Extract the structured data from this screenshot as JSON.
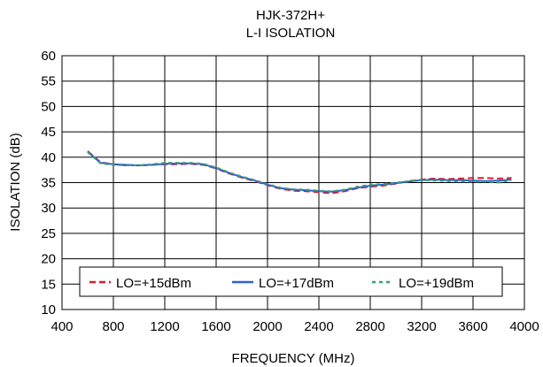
{
  "chart_data": {
    "type": "line",
    "title": "HJK-372H+",
    "subtitle": "L-I ISOLATION",
    "xlabel": "FREQUENCY (MHz)",
    "ylabel": "ISOLATION (dB)",
    "xlim": [
      400,
      4000
    ],
    "ylim": [
      10,
      60
    ],
    "xticks": [
      400,
      800,
      1200,
      1600,
      2000,
      2400,
      2800,
      3200,
      3600,
      4000
    ],
    "yticks": [
      10,
      15,
      20,
      25,
      30,
      35,
      40,
      45,
      50,
      55,
      60
    ],
    "grid": true,
    "legend_position": "bottom",
    "series": [
      {
        "name": "LO=+15dBm",
        "color": "#d81e2c",
        "style": "dashed",
        "x": [
          600,
          700,
          800,
          900,
          1000,
          1100,
          1200,
          1300,
          1400,
          1500,
          1600,
          1700,
          1800,
          1900,
          2000,
          2100,
          2200,
          2300,
          2400,
          2500,
          2600,
          2700,
          2800,
          2900,
          3000,
          3100,
          3200,
          3300,
          3400,
          3500,
          3600,
          3700,
          3800,
          3900
        ],
        "values": [
          41.2,
          39.0,
          38.6,
          38.4,
          38.4,
          38.5,
          38.6,
          38.6,
          38.7,
          38.5,
          37.8,
          36.8,
          36.0,
          35.3,
          34.5,
          33.8,
          33.4,
          33.3,
          33.1,
          32.9,
          33.3,
          33.9,
          34.2,
          34.4,
          34.8,
          35.3,
          35.6,
          35.8,
          35.7,
          35.8,
          35.9,
          35.9,
          35.8,
          35.9
        ]
      },
      {
        "name": "LO=+17dBm",
        "color": "#2d5fd6",
        "style": "solid",
        "x": [
          600,
          700,
          800,
          900,
          1000,
          1100,
          1200,
          1300,
          1400,
          1500,
          1600,
          1700,
          1800,
          1900,
          2000,
          2100,
          2200,
          2300,
          2400,
          2500,
          2600,
          2700,
          2800,
          2900,
          3000,
          3100,
          3200,
          3300,
          3400,
          3500,
          3600,
          3700,
          3800,
          3900
        ],
        "values": [
          41.1,
          38.9,
          38.6,
          38.5,
          38.4,
          38.5,
          38.7,
          38.8,
          38.8,
          38.6,
          37.9,
          36.9,
          36.1,
          35.4,
          34.6,
          33.9,
          33.6,
          33.5,
          33.3,
          33.2,
          33.5,
          34.0,
          34.4,
          34.6,
          34.9,
          35.2,
          35.5,
          35.6,
          35.5,
          35.5,
          35.4,
          35.3,
          35.4,
          35.6
        ]
      },
      {
        "name": "LO=+19dBm",
        "color": "#3aa06a",
        "style": "dotted",
        "x": [
          600,
          700,
          800,
          900,
          1000,
          1100,
          1200,
          1300,
          1400,
          1500,
          1600,
          1700,
          1800,
          1900,
          2000,
          2100,
          2200,
          2300,
          2400,
          2500,
          2600,
          2700,
          2800,
          2900,
          3000,
          3100,
          3200,
          3300,
          3400,
          3500,
          3600,
          3700,
          3800,
          3900
        ],
        "values": [
          41.0,
          38.8,
          38.5,
          38.4,
          38.4,
          38.6,
          38.9,
          38.9,
          38.9,
          38.7,
          38.0,
          37.0,
          36.2,
          35.5,
          34.7,
          34.0,
          33.7,
          33.6,
          33.4,
          33.3,
          33.6,
          34.2,
          34.6,
          34.7,
          35.0,
          35.3,
          35.5,
          35.4,
          35.3,
          35.2,
          35.2,
          35.2,
          35.0,
          35.5
        ]
      }
    ]
  }
}
